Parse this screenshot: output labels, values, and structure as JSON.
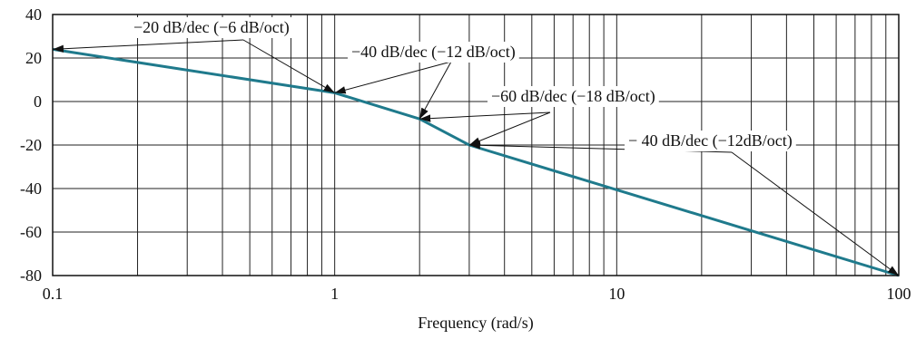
{
  "chart_data": {
    "type": "line",
    "xscale": "log",
    "xlim": [
      0.1,
      100
    ],
    "ylim": [
      -80,
      40
    ],
    "grid": true,
    "xlabel": "Frequency (rad/s)",
    "ylabel": "",
    "title": "",
    "x_ticks": [
      {
        "value": 0.1,
        "label": "0.1"
      },
      {
        "value": 1,
        "label": "1"
      },
      {
        "value": 10,
        "label": "10"
      },
      {
        "value": 100,
        "label": "100"
      }
    ],
    "y_ticks": [
      {
        "value": 40,
        "label": "40"
      },
      {
        "value": 20,
        "label": "20"
      },
      {
        "value": 0,
        "label": "0"
      },
      {
        "value": -20,
        "label": "-20"
      },
      {
        "value": -40,
        "label": "-40"
      },
      {
        "value": -60,
        "label": "-60"
      },
      {
        "value": -80,
        "label": "-80"
      }
    ],
    "series": [
      {
        "x": [
          0.1,
          1,
          2,
          3,
          100
        ],
        "y": [
          24,
          4,
          -8,
          -20,
          -80
        ],
        "color": "#1f7a8c"
      }
    ],
    "annotations": [
      {
        "text": "−20 dB/dec (−6 dB/oct)",
        "points": [
          [
            0.1,
            24
          ],
          [
            1,
            4
          ]
        ]
      },
      {
        "text": "−40 dB/dec (−12 dB/oct)",
        "points": [
          [
            1,
            4
          ],
          [
            2,
            -8
          ]
        ]
      },
      {
        "text": "−60 dB/dec (−18 dB/oct)",
        "points": [
          [
            2,
            -8
          ],
          [
            3,
            -20
          ]
        ]
      },
      {
        "text": "− 40 dB/dec (−12dB/oct)",
        "points": [
          [
            3,
            -20
          ],
          [
            100,
            -80
          ]
        ]
      }
    ]
  }
}
